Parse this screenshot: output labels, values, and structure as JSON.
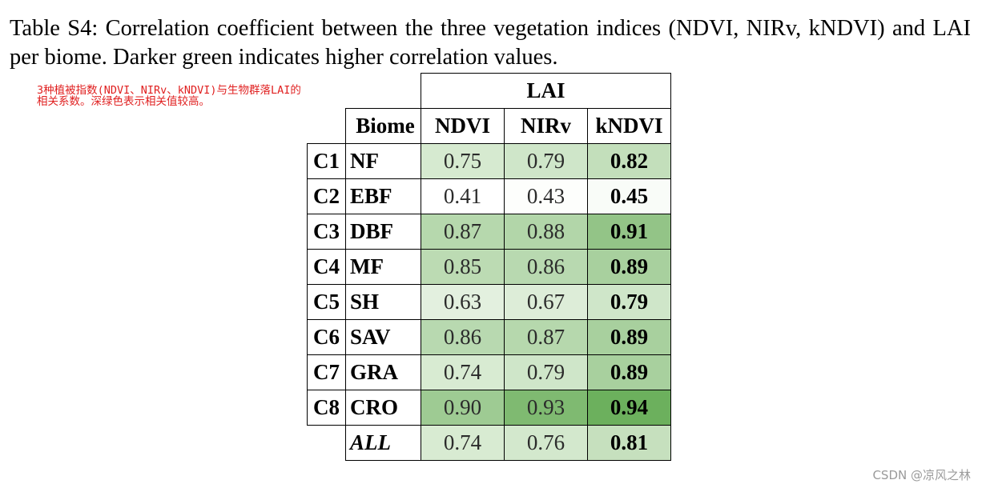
{
  "caption": "Table S4: Correlation coefficient between the three vegetation indices (NDVI, NIRv, kNDVI) and LAI per biome. Darker green indicates higher correlation values.",
  "annotation": "3种植被指数(NDVI、NIRv、kNDVI)与生物群落LAI的相关系数。深绿色表示相关值较高。",
  "watermark": "CSDN @凉风之林",
  "table": {
    "group_header": "LAI",
    "columns": [
      "Biome",
      "NDVI",
      "NIRv",
      "kNDVI"
    ],
    "rows": [
      {
        "code": "C1",
        "biome": "NF",
        "ndvi": "0.75",
        "nirv": "0.79",
        "kndvi": "0.82",
        "colors": [
          "#d6ead0",
          "#cfe6c9",
          "#c3dfbb"
        ]
      },
      {
        "code": "C2",
        "biome": "EBF",
        "ndvi": "0.41",
        "nirv": "0.43",
        "kndvi": "0.45",
        "colors": [
          "#ffffff",
          "#fdfefc",
          "#f9fcf8"
        ]
      },
      {
        "code": "C3",
        "biome": "DBF",
        "ndvi": "0.87",
        "nirv": "0.88",
        "kndvi": "0.91",
        "colors": [
          "#b6d8ad",
          "#b2d6a9",
          "#93c487"
        ]
      },
      {
        "code": "C4",
        "biome": "MF",
        "ndvi": "0.85",
        "nirv": "0.86",
        "kndvi": "0.89",
        "colors": [
          "#bcdbb3",
          "#b8d9b0",
          "#a8d09e"
        ]
      },
      {
        "code": "C5",
        "biome": "SH",
        "ndvi": "0.63",
        "nirv": "0.67",
        "kndvi": "0.79",
        "colors": [
          "#e3f0df",
          "#ddedd8",
          "#cfe6c9"
        ]
      },
      {
        "code": "C6",
        "biome": "SAV",
        "ndvi": "0.86",
        "nirv": "0.87",
        "kndvi": "0.89",
        "colors": [
          "#b8d9b0",
          "#b6d8ad",
          "#a8d09e"
        ]
      },
      {
        "code": "C7",
        "biome": "GRA",
        "ndvi": "0.74",
        "nirv": "0.79",
        "kndvi": "0.89",
        "colors": [
          "#d8ebd2",
          "#cfe6c9",
          "#a8d09e"
        ]
      },
      {
        "code": "C8",
        "biome": "CRO",
        "ndvi": "0.90",
        "nirv": "0.93",
        "kndvi": "0.94",
        "colors": [
          "#9ecb93",
          "#7fba71",
          "#6cb05d"
        ]
      },
      {
        "code": "",
        "biome": "ALL",
        "ndvi": "0.74",
        "nirv": "0.76",
        "kndvi": "0.81",
        "colors": [
          "#d8ebd2",
          "#d3e8cd",
          "#c6e0be"
        ]
      }
    ]
  }
}
